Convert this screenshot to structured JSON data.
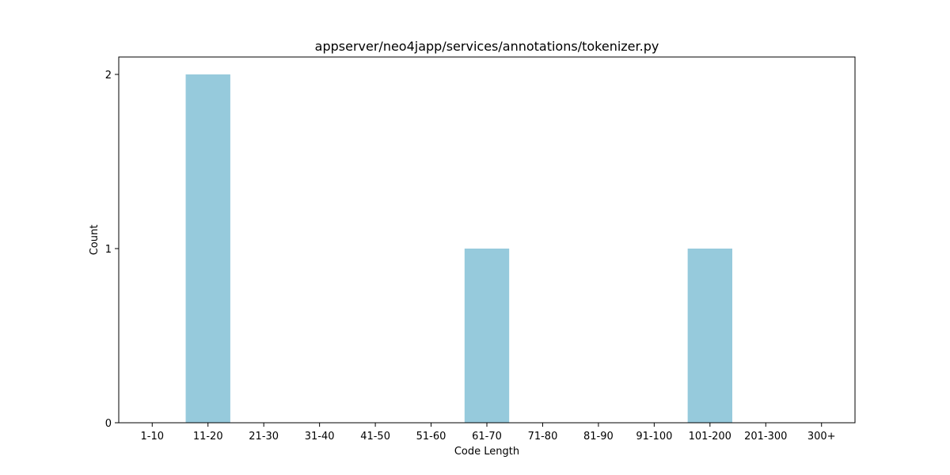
{
  "chart_data": {
    "type": "bar",
    "title": "appserver/neo4japp/services/annotations/tokenizer.py",
    "xlabel": "Code Length",
    "ylabel": "Count",
    "categories": [
      "1-10",
      "11-20",
      "21-30",
      "31-40",
      "41-50",
      "51-60",
      "61-70",
      "71-80",
      "81-90",
      "91-100",
      "101-200",
      "201-300",
      "300+"
    ],
    "values": [
      0,
      2,
      0,
      0,
      0,
      0,
      1,
      0,
      0,
      0,
      1,
      0,
      0
    ],
    "ylim": [
      0,
      2.1
    ],
    "yticks": [
      0,
      1,
      2
    ],
    "grid": false,
    "bar_color": "#96CADC"
  }
}
